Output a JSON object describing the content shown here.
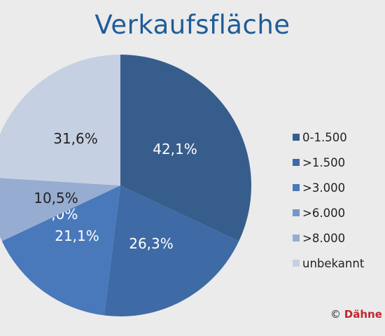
{
  "chart_data": {
    "type": "pie",
    "title": "Verkaufsfläche",
    "slices": [
      {
        "label": "0-1.500",
        "value": 42.1,
        "value_label": "42,1%",
        "color": "#375d8c"
      },
      {
        "label": ">1.500",
        "value": 26.3,
        "value_label": "26,3%",
        "color": "#3e6aa5"
      },
      {
        "label": ">3.000",
        "value": 21.1,
        "value_label": "21,1%",
        "color": "#4978bb"
      },
      {
        "label": ">6.000",
        "value": 0.0,
        "value_label": "0,0%",
        "color": "#7397ca"
      },
      {
        "label": ">8.000",
        "value": 10.5,
        "value_label": "10,5%",
        "color": "#96acd1"
      },
      {
        "label": "unbekannt",
        "value": 31.6,
        "value_label": "31,6%",
        "color": "#c6d0e3"
      }
    ],
    "legend_position": "right"
  },
  "copyright": {
    "symbol": "©",
    "brand": "Dähne V"
  }
}
